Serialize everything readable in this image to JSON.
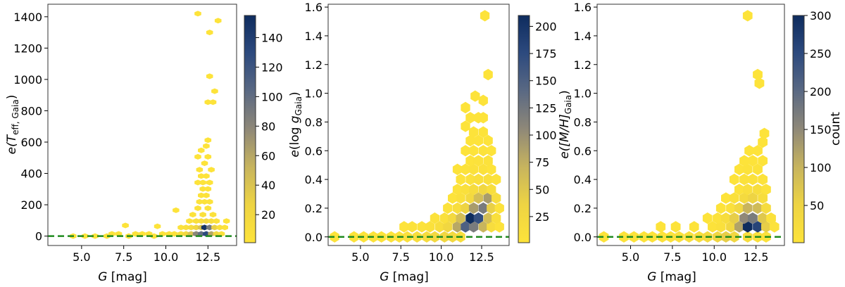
{
  "colors": {
    "cmap": [
      "#fde33a",
      "#eed443",
      "#c7b45e",
      "#8f8878",
      "#5a6983",
      "#2d4a7e",
      "#0e2c5e"
    ],
    "zero_line": "#1f8a1f"
  },
  "chart_data": [
    {
      "type": "hexbin",
      "xlabel_main": "G",
      "xlabel_unit": " [mag]",
      "ylabel_main": "e(",
      "ylabel_sym": "T",
      "ylabel_sub": "eff, Gaia",
      "ylabel_close": ")",
      "xlim": [
        3.0,
        14.2
      ],
      "ylim": [
        -60,
        1480
      ],
      "xticks": [
        "5.0",
        "7.5",
        "10.0",
        "12.5"
      ],
      "yticks": [
        "0",
        "200",
        "400",
        "600",
        "800",
        "1000",
        "1200",
        "1400"
      ],
      "ytick_values": [
        0,
        200,
        400,
        600,
        800,
        1000,
        1200,
        1400
      ],
      "cbar_range": [
        1,
        155
      ],
      "cbar_ticks": [
        "20",
        "40",
        "60",
        "80",
        "100",
        "120",
        "140"
      ],
      "cbar_tick_values": [
        20,
        40,
        60,
        80,
        100,
        120,
        140
      ],
      "cbar_label": "",
      "hex_size": [
        0.2,
        18
      ],
      "bins": [
        [
          4.5,
          0,
          1
        ],
        [
          5.2,
          0,
          1
        ],
        [
          5.8,
          0,
          1
        ],
        [
          6.5,
          0,
          1
        ],
        [
          6.8,
          14,
          1
        ],
        [
          7.2,
          14,
          1
        ],
        [
          7.6,
          68,
          1
        ],
        [
          7.8,
          0,
          2
        ],
        [
          8.2,
          14,
          1
        ],
        [
          8.6,
          14,
          1
        ],
        [
          9.0,
          14,
          2
        ],
        [
          9.3,
          0,
          3
        ],
        [
          9.5,
          62,
          1
        ],
        [
          9.8,
          14,
          2
        ],
        [
          10.2,
          14,
          3
        ],
        [
          10.5,
          14,
          5
        ],
        [
          10.6,
          165,
          1
        ],
        [
          10.9,
          14,
          8
        ],
        [
          10.9,
          55,
          3
        ],
        [
          11.2,
          14,
          20
        ],
        [
          11.2,
          55,
          6
        ],
        [
          11.4,
          96,
          4
        ],
        [
          11.5,
          14,
          40
        ],
        [
          11.5,
          55,
          12
        ],
        [
          11.6,
          137,
          3
        ],
        [
          11.8,
          14,
          80
        ],
        [
          11.8,
          55,
          22
        ],
        [
          11.8,
          96,
          8
        ],
        [
          11.9,
          178,
          4
        ],
        [
          12.1,
          14,
          100
        ],
        [
          12.1,
          55,
          40
        ],
        [
          12.1,
          96,
          12
        ],
        [
          12.2,
          137,
          6
        ],
        [
          12.3,
          55,
          150
        ],
        [
          12.4,
          14,
          130
        ],
        [
          12.4,
          96,
          20
        ],
        [
          12.5,
          178,
          5
        ],
        [
          12.6,
          55,
          90
        ],
        [
          12.7,
          14,
          60
        ],
        [
          12.7,
          96,
          12
        ],
        [
          12.8,
          137,
          4
        ],
        [
          12.9,
          55,
          30
        ],
        [
          13.0,
          14,
          20
        ],
        [
          13.0,
          96,
          5
        ],
        [
          13.2,
          55,
          8
        ],
        [
          13.3,
          14,
          6
        ],
        [
          13.5,
          55,
          2
        ],
        [
          13.6,
          96,
          1
        ],
        [
          12.0,
          219,
          3
        ],
        [
          12.3,
          219,
          2
        ],
        [
          12.6,
          219,
          2
        ],
        [
          12.1,
          260,
          2
        ],
        [
          12.4,
          260,
          2
        ],
        [
          12.2,
          301,
          2
        ],
        [
          12.5,
          301,
          1
        ],
        [
          11.9,
          342,
          1
        ],
        [
          12.2,
          342,
          1
        ],
        [
          12.6,
          342,
          1
        ],
        [
          12.1,
          383,
          1
        ],
        [
          12.4,
          383,
          1
        ],
        [
          12.0,
          424,
          1
        ],
        [
          12.7,
          424,
          1
        ],
        [
          12.3,
          465,
          1
        ],
        [
          11.9,
          506,
          1
        ],
        [
          12.5,
          506,
          1
        ],
        [
          12.1,
          547,
          1
        ],
        [
          12.4,
          575,
          1
        ],
        [
          12.5,
          612,
          1
        ],
        [
          12.5,
          855,
          1
        ],
        [
          12.8,
          855,
          1
        ],
        [
          12.9,
          925,
          1
        ],
        [
          12.6,
          1020,
          1
        ],
        [
          12.6,
          1300,
          1
        ],
        [
          13.1,
          1375,
          1
        ],
        [
          11.9,
          1420,
          1
        ]
      ]
    },
    {
      "type": "hexbin",
      "xlabel_main": "G",
      "xlabel_unit": " [mag]",
      "ylabel_main": "e(log",
      "ylabel_sym": "g",
      "ylabel_sub": "Gaia",
      "ylabel_close": ")",
      "xlim": [
        3.0,
        14.2
      ],
      "ylim": [
        -0.06,
        1.62
      ],
      "xticks": [
        "5.0",
        "7.5",
        "10.0",
        "12.5"
      ],
      "yticks": [
        "0.0",
        "0.2",
        "0.4",
        "0.6",
        "0.8",
        "1.0",
        "1.2",
        "1.4",
        "1.6"
      ],
      "ytick_values": [
        0.0,
        0.2,
        0.4,
        0.6,
        0.8,
        1.0,
        1.2,
        1.4,
        1.6
      ],
      "cbar_range": [
        1,
        210
      ],
      "cbar_ticks": [
        "25",
        "50",
        "75",
        "100",
        "125",
        "150",
        "175",
        "200"
      ],
      "cbar_tick_values": [
        25,
        50,
        75,
        100,
        125,
        150,
        175,
        200
      ],
      "cbar_label": "",
      "hex_size": [
        0.29,
        0.04
      ],
      "bins": [
        [
          3.4,
          0.0,
          1
        ],
        [
          4.6,
          0.0,
          1
        ],
        [
          5.2,
          0.0,
          1
        ],
        [
          5.8,
          0.0,
          1
        ],
        [
          6.3,
          0.0,
          1
        ],
        [
          6.9,
          0.0,
          2
        ],
        [
          7.4,
          0.0,
          3
        ],
        [
          7.9,
          0.0,
          8
        ],
        [
          8.5,
          0.0,
          12
        ],
        [
          9.1,
          0.0,
          18
        ],
        [
          9.6,
          0.0,
          25
        ],
        [
          10.2,
          0.0,
          30
        ],
        [
          10.7,
          0.0,
          25
        ],
        [
          11.2,
          0.0,
          12
        ],
        [
          7.7,
          0.07,
          2
        ],
        [
          8.2,
          0.07,
          3
        ],
        [
          8.8,
          0.07,
          4
        ],
        [
          9.3,
          0.07,
          6
        ],
        [
          9.9,
          0.07,
          12
        ],
        [
          10.4,
          0.07,
          30
        ],
        [
          11.0,
          0.07,
          80
        ],
        [
          11.5,
          0.07,
          150
        ],
        [
          12.0,
          0.07,
          120
        ],
        [
          12.6,
          0.07,
          70
        ],
        [
          13.1,
          0.07,
          15
        ],
        [
          13.6,
          0.07,
          3
        ],
        [
          9.6,
          0.13,
          3
        ],
        [
          10.2,
          0.13,
          8
        ],
        [
          10.7,
          0.13,
          25
        ],
        [
          11.2,
          0.13,
          60
        ],
        [
          11.8,
          0.13,
          210
        ],
        [
          12.3,
          0.13,
          170
        ],
        [
          12.9,
          0.13,
          60
        ],
        [
          13.4,
          0.13,
          10
        ],
        [
          10.4,
          0.2,
          3
        ],
        [
          11.0,
          0.2,
          12
        ],
        [
          11.5,
          0.2,
          35
        ],
        [
          12.0,
          0.2,
          90
        ],
        [
          12.6,
          0.2,
          120
        ],
        [
          13.1,
          0.2,
          40
        ],
        [
          13.6,
          0.2,
          4
        ],
        [
          10.7,
          0.27,
          2
        ],
        [
          11.2,
          0.27,
          8
        ],
        [
          11.8,
          0.27,
          25
        ],
        [
          12.3,
          0.27,
          60
        ],
        [
          12.9,
          0.27,
          90
        ],
        [
          13.4,
          0.27,
          15
        ],
        [
          11.0,
          0.33,
          3
        ],
        [
          11.5,
          0.33,
          8
        ],
        [
          12.0,
          0.33,
          18
        ],
        [
          12.6,
          0.33,
          30
        ],
        [
          13.1,
          0.33,
          12
        ],
        [
          11.2,
          0.4,
          2
        ],
        [
          11.8,
          0.4,
          6
        ],
        [
          12.3,
          0.4,
          10
        ],
        [
          12.9,
          0.4,
          10
        ],
        [
          13.4,
          0.4,
          3
        ],
        [
          11.0,
          0.47,
          1
        ],
        [
          11.5,
          0.47,
          4
        ],
        [
          12.0,
          0.47,
          6
        ],
        [
          12.6,
          0.47,
          6
        ],
        [
          13.1,
          0.47,
          2
        ],
        [
          11.8,
          0.53,
          2
        ],
        [
          12.3,
          0.53,
          3
        ],
        [
          12.9,
          0.53,
          3
        ],
        [
          11.5,
          0.6,
          2
        ],
        [
          12.0,
          0.6,
          2
        ],
        [
          12.6,
          0.6,
          3
        ],
        [
          13.1,
          0.6,
          1
        ],
        [
          11.8,
          0.67,
          1
        ],
        [
          12.3,
          0.67,
          2
        ],
        [
          12.9,
          0.67,
          1
        ],
        [
          12.0,
          0.73,
          1
        ],
        [
          12.6,
          0.73,
          1
        ],
        [
          11.5,
          0.77,
          1
        ],
        [
          11.8,
          0.83,
          1
        ],
        [
          12.3,
          0.83,
          1
        ],
        [
          12.6,
          0.83,
          1
        ],
        [
          11.5,
          0.9,
          1
        ],
        [
          12.6,
          0.95,
          1
        ],
        [
          12.1,
          0.98,
          1
        ],
        [
          12.9,
          1.13,
          1
        ],
        [
          12.7,
          1.54,
          1
        ]
      ]
    },
    {
      "type": "hexbin",
      "xlabel_main": "G",
      "xlabel_unit": " [mag]",
      "ylabel_main": "e([M/H]",
      "ylabel_sym": "",
      "ylabel_sub": "Gaia",
      "ylabel_close": ")",
      "xlim": [
        3.0,
        14.2
      ],
      "ylim": [
        -0.06,
        1.62
      ],
      "xticks": [
        "5.0",
        "7.5",
        "10.0",
        "12.5"
      ],
      "yticks": [
        "0.0",
        "0.2",
        "0.4",
        "0.6",
        "0.8",
        "1.0",
        "1.2",
        "1.4",
        "1.6"
      ],
      "ytick_values": [
        0.0,
        0.2,
        0.4,
        0.6,
        0.8,
        1.0,
        1.2,
        1.4,
        1.6
      ],
      "cbar_range": [
        1,
        300
      ],
      "cbar_ticks": [
        "50",
        "100",
        "150",
        "200",
        "250",
        "300"
      ],
      "cbar_tick_values": [
        50,
        100,
        150,
        200,
        250,
        300
      ],
      "cbar_label": "count",
      "hex_size": [
        0.29,
        0.04
      ],
      "bins": [
        [
          3.4,
          0.0,
          1
        ],
        [
          4.6,
          0.0,
          1
        ],
        [
          5.2,
          0.0,
          1
        ],
        [
          5.8,
          0.0,
          1
        ],
        [
          6.3,
          0.0,
          2
        ],
        [
          6.9,
          0.0,
          3
        ],
        [
          7.4,
          0.0,
          5
        ],
        [
          7.9,
          0.0,
          10
        ],
        [
          8.5,
          0.0,
          15
        ],
        [
          9.1,
          0.0,
          20
        ],
        [
          9.6,
          0.0,
          30
        ],
        [
          10.2,
          0.0,
          45
        ],
        [
          10.7,
          0.0,
          60
        ],
        [
          11.2,
          0.0,
          40
        ],
        [
          12.0,
          0.0,
          20
        ],
        [
          12.6,
          0.0,
          10
        ],
        [
          13.1,
          0.0,
          4
        ],
        [
          6.8,
          0.07,
          1
        ],
        [
          7.7,
          0.07,
          1
        ],
        [
          8.8,
          0.07,
          1
        ],
        [
          9.9,
          0.07,
          3
        ],
        [
          10.4,
          0.07,
          12
        ],
        [
          11.0,
          0.07,
          40
        ],
        [
          11.5,
          0.07,
          120
        ],
        [
          12.0,
          0.07,
          300
        ],
        [
          12.6,
          0.07,
          260
        ],
        [
          13.1,
          0.07,
          60
        ],
        [
          13.6,
          0.07,
          5
        ],
        [
          9.6,
          0.13,
          1
        ],
        [
          10.2,
          0.13,
          4
        ],
        [
          10.7,
          0.13,
          20
        ],
        [
          11.2,
          0.13,
          60
        ],
        [
          11.8,
          0.13,
          150
        ],
        [
          12.3,
          0.13,
          170
        ],
        [
          12.9,
          0.13,
          70
        ],
        [
          13.4,
          0.13,
          8
        ],
        [
          10.4,
          0.2,
          2
        ],
        [
          11.0,
          0.2,
          12
        ],
        [
          11.5,
          0.2,
          40
        ],
        [
          12.0,
          0.2,
          100
        ],
        [
          12.6,
          0.2,
          90
        ],
        [
          13.1,
          0.2,
          25
        ],
        [
          10.7,
          0.27,
          2
        ],
        [
          11.2,
          0.27,
          10
        ],
        [
          11.8,
          0.27,
          30
        ],
        [
          12.3,
          0.27,
          50
        ],
        [
          12.9,
          0.27,
          20
        ],
        [
          11.5,
          0.33,
          5
        ],
        [
          12.0,
          0.33,
          15
        ],
        [
          12.6,
          0.33,
          20
        ],
        [
          13.1,
          0.33,
          4
        ],
        [
          11.2,
          0.4,
          2
        ],
        [
          11.8,
          0.4,
          6
        ],
        [
          12.3,
          0.4,
          8
        ],
        [
          12.9,
          0.4,
          5
        ],
        [
          11.5,
          0.47,
          2
        ],
        [
          12.0,
          0.47,
          3
        ],
        [
          12.6,
          0.47,
          3
        ],
        [
          11.8,
          0.53,
          1
        ],
        [
          12.3,
          0.53,
          2
        ],
        [
          12.9,
          0.53,
          2
        ],
        [
          12.1,
          0.6,
          1
        ],
        [
          12.6,
          0.6,
          1
        ],
        [
          12.9,
          0.66,
          1
        ],
        [
          13.0,
          0.72,
          1
        ],
        [
          12.7,
          1.07,
          1
        ],
        [
          12.6,
          1.13,
          1
        ],
        [
          12.0,
          1.54,
          1
        ]
      ]
    }
  ]
}
